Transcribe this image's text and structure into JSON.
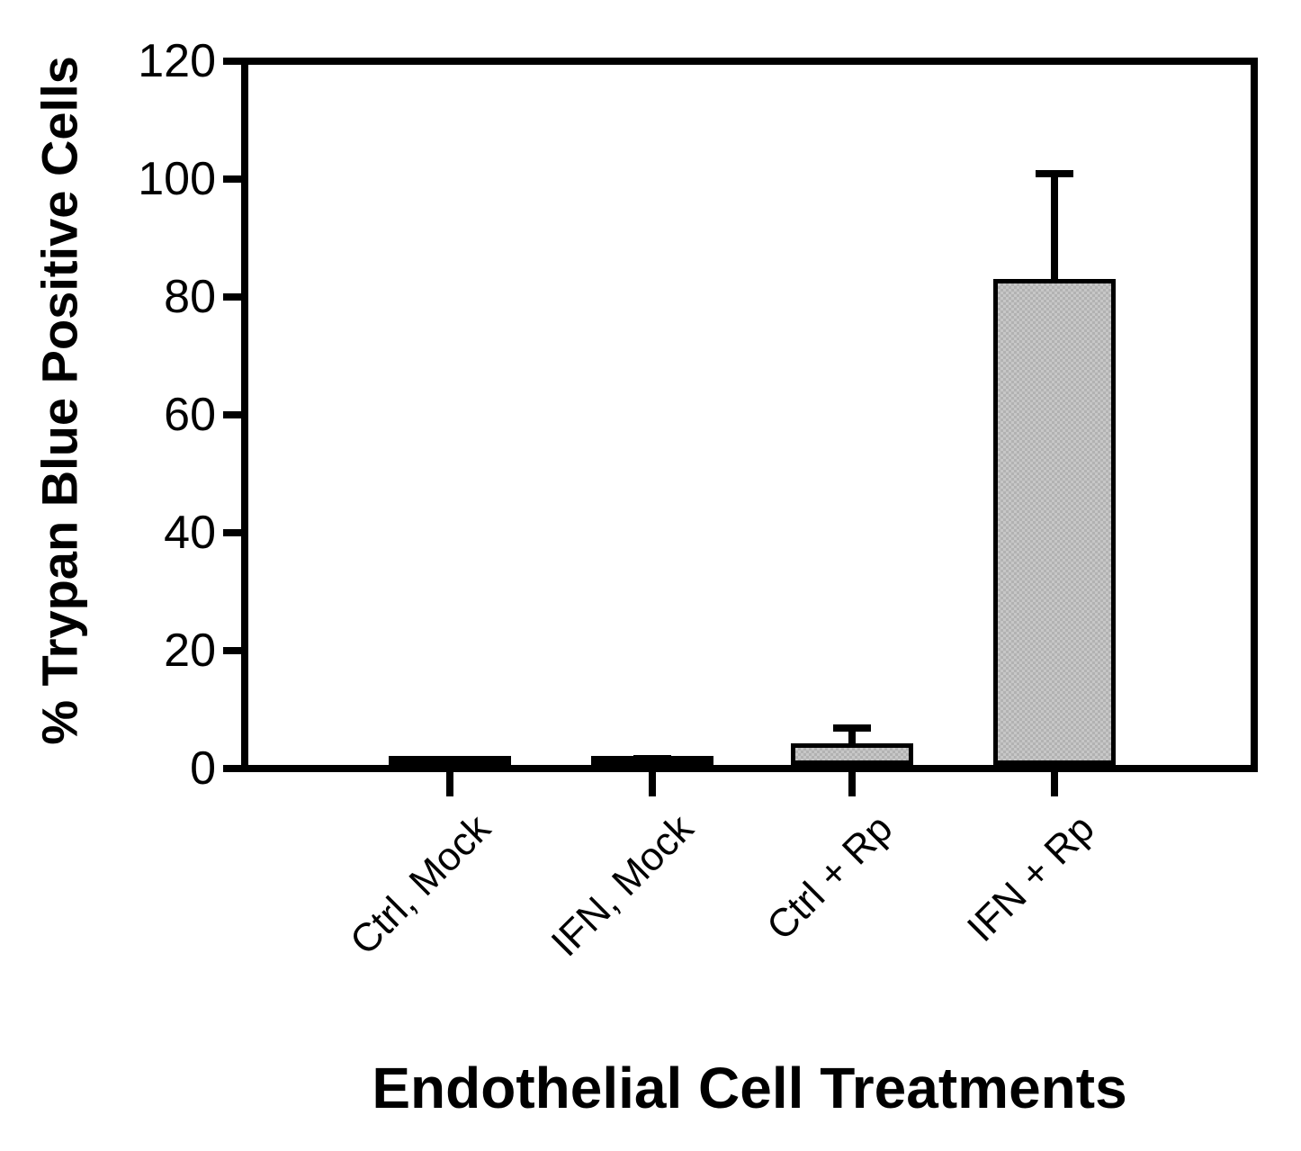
{
  "chart_data": {
    "type": "bar",
    "title": "",
    "xlabel": "Endothelial Cell Treatments",
    "ylabel": "% Trypan Blue Positive Cells",
    "categories": [
      "Ctrl, Mock",
      "IFN, Mock",
      "Ctrl + Rp",
      "IFN + Rp"
    ],
    "values": [
      0.7,
      0.7,
      3.6,
      82.5
    ],
    "errors_plus": [
      0.5,
      0.8,
      3.1,
      18.2
    ],
    "yticks": [
      0,
      20,
      40,
      60,
      80,
      100,
      120
    ],
    "ylim": [
      0,
      120
    ],
    "grid": false,
    "legend": "none",
    "bar_fill_color": "#c7c7c7",
    "bar_stipple_color": "#b2b2b2",
    "bar_edge_color": "#000000",
    "axis_color": "#000000",
    "background_color": "#ffffff"
  }
}
